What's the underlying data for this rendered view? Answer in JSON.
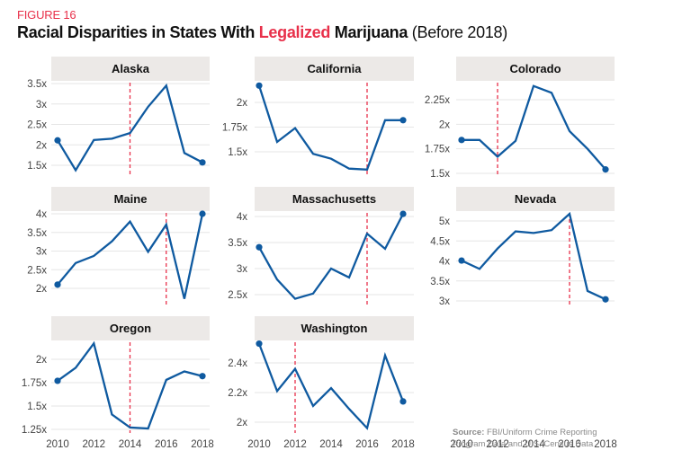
{
  "figure": {
    "label": "FIGURE 16",
    "title_parts": {
      "part1": "Racial Disparities in States With ",
      "accent": "Legalized",
      "part2": " Marijuana",
      "part3": " (Before 2018)"
    }
  },
  "source": {
    "label": "Source:",
    "text": " FBI/Uniform Crime Reporting Program Data and U.S. Census Data"
  },
  "colors": {
    "line": "#0f5aa0",
    "legalization_marker": "#e8304a",
    "panel_header": "#ece9e7",
    "grid": "#e6e6e6",
    "accent": "#e8304a"
  },
  "chart_data": [
    {
      "type": "line",
      "title": "Alaska",
      "x": [
        2010,
        2011,
        2012,
        2013,
        2014,
        2015,
        2016,
        2017,
        2018
      ],
      "values": [
        2.11,
        1.38,
        2.12,
        2.15,
        2.29,
        2.93,
        3.45,
        1.8,
        1.57
      ],
      "legalized_year": 2014,
      "yticks": [
        1.5,
        2,
        2.5,
        3,
        3.5
      ],
      "ytick_labels": [
        "1.5x",
        "2x",
        "2.5x",
        "3x",
        "3.5x"
      ],
      "ylim": [
        1.35,
        3.5
      ],
      "xticks_shown": false
    },
    {
      "type": "line",
      "title": "California",
      "x": [
        2010,
        2011,
        2012,
        2013,
        2014,
        2015,
        2016,
        2017,
        2018
      ],
      "values": [
        2.17,
        1.6,
        1.74,
        1.48,
        1.43,
        1.33,
        1.32,
        1.82,
        1.82
      ],
      "legalized_year": 2016,
      "yticks": [
        1.5,
        1.75,
        2
      ],
      "ytick_labels": [
        "1.5x",
        "1.75x",
        "2x"
      ],
      "ylim": [
        1.28,
        2.18
      ],
      "xticks_shown": false
    },
    {
      "type": "line",
      "title": "Colorado",
      "x": [
        2010,
        2011,
        2012,
        2013,
        2014,
        2015,
        2016,
        2017,
        2018
      ],
      "values": [
        1.84,
        1.84,
        1.67,
        1.83,
        2.39,
        2.32,
        1.93,
        1.75,
        1.54
      ],
      "legalized_year": 2012,
      "yticks": [
        1.5,
        1.75,
        2,
        2.25
      ],
      "ytick_labels": [
        "1.5x",
        "1.75x",
        "2x",
        "2.25x"
      ],
      "ylim": [
        1.5,
        2.4
      ],
      "xticks_shown": false
    },
    {
      "type": "line",
      "title": "Maine",
      "x": [
        2010,
        2011,
        2012,
        2013,
        2014,
        2015,
        2016,
        2017,
        2018
      ],
      "values": [
        2.1,
        2.68,
        2.87,
        3.26,
        3.79,
        2.98,
        3.71,
        1.72,
        4.0
      ],
      "legalized_year": 2016,
      "yticks": [
        2,
        2.5,
        3,
        3.5,
        4
      ],
      "ytick_labels": [
        "2x",
        "2.5x",
        "3x",
        "3.5x",
        "4x"
      ],
      "ylim": [
        1.7,
        4.0
      ],
      "xticks_shown": false
    },
    {
      "type": "line",
      "title": "Massachusetts",
      "x": [
        2010,
        2011,
        2012,
        2013,
        2014,
        2015,
        2016,
        2017,
        2018
      ],
      "values": [
        3.41,
        2.79,
        2.42,
        2.52,
        3.0,
        2.83,
        3.67,
        3.38,
        4.05
      ],
      "legalized_year": 2016,
      "yticks": [
        2.5,
        3,
        3.5,
        4
      ],
      "ytick_labels": [
        "2.5x",
        "3x",
        "3.5x",
        "4x"
      ],
      "ylim": [
        2.38,
        4.05
      ],
      "xticks_shown": false
    },
    {
      "type": "line",
      "title": "Nevada",
      "x": [
        2010,
        2011,
        2012,
        2013,
        2014,
        2015,
        2016,
        2017,
        2018
      ],
      "values": [
        4.01,
        3.8,
        4.31,
        4.74,
        4.7,
        4.77,
        5.18,
        3.25,
        3.04
      ],
      "legalized_year": 2016,
      "yticks": [
        3,
        3.5,
        4,
        4.5,
        5
      ],
      "ytick_labels": [
        "3x",
        "3.5x",
        "4x",
        "4.5x",
        "5x"
      ],
      "ylim": [
        3.0,
        5.18
      ],
      "xticks_shown": true,
      "xtick_labels": [
        "2010",
        "2012",
        "2014",
        "2016",
        "2018"
      ]
    },
    {
      "type": "line",
      "title": "Oregon",
      "x": [
        2010,
        2011,
        2012,
        2013,
        2014,
        2015,
        2016,
        2017,
        2018
      ],
      "values": [
        1.77,
        1.91,
        2.17,
        1.41,
        1.27,
        1.26,
        1.78,
        1.87,
        1.82
      ],
      "legalized_year": 2014,
      "yticks": [
        1.25,
        1.5,
        1.75,
        2
      ],
      "ytick_labels": [
        "1.25x",
        "1.5x",
        "1.75x",
        "2x"
      ],
      "ylim": [
        1.25,
        2.17
      ],
      "xticks_shown": true,
      "xtick_labels": [
        "2010",
        "2012",
        "2014",
        "2016",
        "2018"
      ]
    },
    {
      "type": "line",
      "title": "Washington",
      "x": [
        2010,
        2011,
        2012,
        2013,
        2014,
        2015,
        2016,
        2017,
        2018
      ],
      "values": [
        2.53,
        2.21,
        2.36,
        2.11,
        2.23,
        2.09,
        1.96,
        2.45,
        2.14
      ],
      "legalized_year": 2012,
      "yticks": [
        2,
        2.2,
        2.4
      ],
      "ytick_labels": [
        "2x",
        "2.2x",
        "2.4x"
      ],
      "ylim": [
        1.96,
        2.53
      ],
      "xticks_shown": true,
      "xtick_labels": [
        "2010",
        "2012",
        "2014",
        "2016",
        "2018"
      ]
    }
  ]
}
